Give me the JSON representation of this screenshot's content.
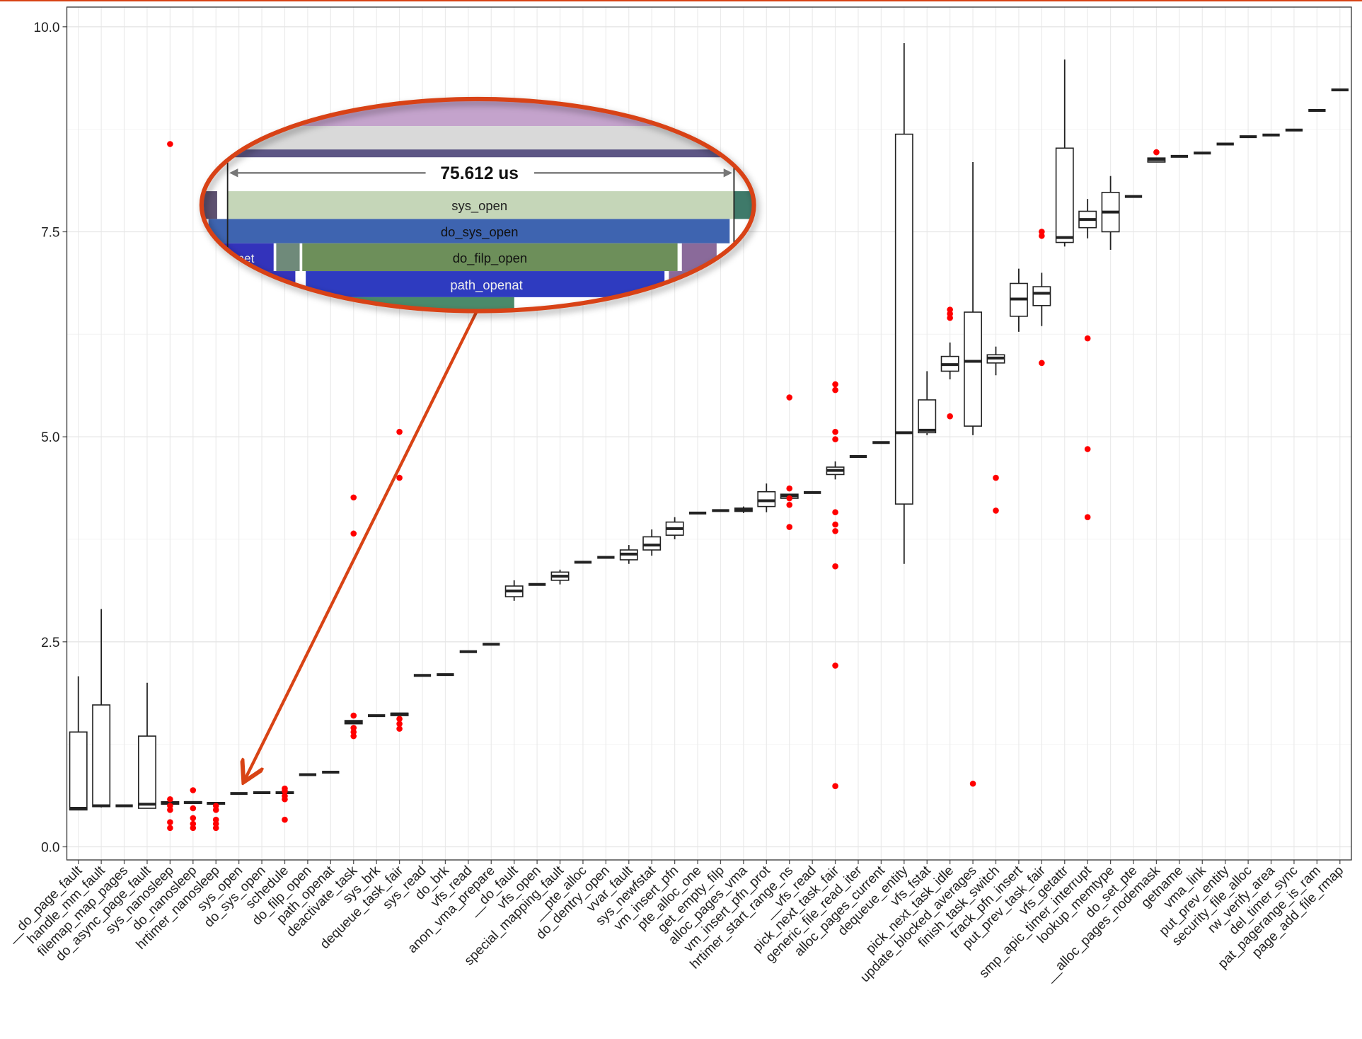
{
  "chart_data": {
    "type": "box",
    "categories": [
      "__do_page_fault",
      "handle_mm_fault",
      "filemap_map_pages",
      "do_async_page_fault",
      "sys_nanosleep",
      "do_nanosleep",
      "hrtimer_nanosleep",
      "sys_open",
      "do_sys_open",
      "schedule",
      "do_filp_open",
      "path_openat",
      "deactivate_task",
      "sys_brk",
      "dequeue_task_fair",
      "sys_read",
      "do_brk",
      "vfs_read",
      "anon_vma_prepare",
      "__do_fault",
      "vfs_open",
      "special_mapping_fault",
      "__pte_alloc",
      "do_dentry_open",
      "vvar_fault",
      "sys_newfstat",
      "vm_insert_pfn",
      "pte_alloc_one",
      "get_empty_filp",
      "alloc_pages_vma",
      "vm_insert_pfn_prot",
      "hrtimer_start_range_ns",
      "__vfs_read",
      "pick_next_task_fair",
      "generic_file_read_iter",
      "alloc_pages_current",
      "dequeue_entity",
      "vfs_fstat",
      "pick_next_task_idle",
      "update_blocked_averages",
      "finish_task_switch",
      "track_pfn_insert",
      "put_prev_task_fair",
      "vfs_getattr",
      "smp_apic_timer_interrupt",
      "lookup_memtype",
      "do_set_pte",
      "__alloc_pages_nodemask",
      "getname",
      "vma_link",
      "put_prev_entity",
      "security_file_alloc",
      "rw_verify_area",
      "del_timer_sync",
      "pat_pagerange_is_ram",
      "page_add_file_rmap"
    ],
    "min": [
      0.45,
      0.48,
      0.5,
      0.47,
      0.52,
      0.53,
      0.52,
      0.65,
      0.66,
      0.65,
      0.88,
      0.91,
      1.5,
      1.6,
      1.6,
      2.09,
      2.1,
      2.38,
      2.47,
      3.0,
      3.2,
      3.2,
      3.47,
      3.53,
      3.45,
      3.55,
      3.75,
      4.07,
      4.1,
      4.07,
      4.08,
      4.25,
      4.32,
      4.48,
      4.76,
      4.93,
      3.45,
      5.02,
      5.7,
      5.02,
      5.75,
      6.28,
      6.35,
      7.32,
      7.42,
      7.28,
      7.93,
      8.35,
      8.42,
      8.46,
      8.57,
      8.66,
      8.68,
      8.74,
      8.98,
      9.23
    ],
    "q1": [
      0.45,
      0.49,
      0.5,
      0.47,
      0.52,
      0.53,
      0.52,
      0.65,
      0.66,
      0.65,
      0.88,
      0.91,
      1.5,
      1.6,
      1.6,
      2.09,
      2.1,
      2.38,
      2.47,
      3.05,
      3.2,
      3.25,
      3.47,
      3.53,
      3.5,
      3.62,
      3.8,
      4.07,
      4.1,
      4.09,
      4.15,
      4.25,
      4.32,
      4.54,
      4.76,
      4.93,
      4.18,
      5.05,
      5.8,
      5.13,
      5.9,
      6.47,
      6.6,
      7.37,
      7.55,
      7.5,
      7.93,
      8.35,
      8.42,
      8.46,
      8.57,
      8.66,
      8.68,
      8.74,
      8.98,
      9.23
    ],
    "median": [
      0.47,
      0.5,
      0.5,
      0.52,
      0.53,
      0.54,
      0.53,
      0.65,
      0.66,
      0.66,
      0.88,
      0.91,
      1.52,
      1.6,
      1.62,
      2.09,
      2.1,
      2.38,
      2.47,
      3.12,
      3.2,
      3.3,
      3.47,
      3.53,
      3.57,
      3.68,
      3.88,
      4.07,
      4.1,
      4.11,
      4.22,
      4.28,
      4.32,
      4.59,
      4.76,
      4.93,
      5.05,
      5.08,
      5.88,
      5.92,
      5.96,
      6.68,
      6.75,
      7.43,
      7.65,
      7.74,
      7.93,
      8.38,
      8.42,
      8.46,
      8.57,
      8.66,
      8.68,
      8.74,
      8.98,
      9.23
    ],
    "q3": [
      1.4,
      1.73,
      0.5,
      1.35,
      0.55,
      0.55,
      0.54,
      0.65,
      0.66,
      0.67,
      0.88,
      0.91,
      1.54,
      1.6,
      1.63,
      2.09,
      2.1,
      2.38,
      2.47,
      3.18,
      3.2,
      3.35,
      3.47,
      3.53,
      3.62,
      3.78,
      3.96,
      4.07,
      4.1,
      4.13,
      4.33,
      4.3,
      4.32,
      4.63,
      4.76,
      4.93,
      8.69,
      5.45,
      5.98,
      6.52,
      6.0,
      6.87,
      6.83,
      8.52,
      7.75,
      7.98,
      7.93,
      8.4,
      8.42,
      8.46,
      8.57,
      8.66,
      8.68,
      8.74,
      8.98,
      9.23
    ],
    "max": [
      2.08,
      2.9,
      0.5,
      2.0,
      0.55,
      0.55,
      0.54,
      0.65,
      0.66,
      0.67,
      0.88,
      0.91,
      1.54,
      1.6,
      1.63,
      2.09,
      2.1,
      2.38,
      2.47,
      3.25,
      3.2,
      3.38,
      3.47,
      3.53,
      3.68,
      3.87,
      4.02,
      4.07,
      4.1,
      4.15,
      4.43,
      4.3,
      4.32,
      4.7,
      4.76,
      4.93,
      9.8,
      5.8,
      6.15,
      8.35,
      6.1,
      7.05,
      7.0,
      9.6,
      7.9,
      8.18,
      7.93,
      8.4,
      8.42,
      8.46,
      8.57,
      8.66,
      8.68,
      8.74,
      8.98,
      9.23
    ],
    "outliers": [
      [],
      [],
      [],
      [],
      [
        8.57,
        0.58,
        0.5,
        0.45,
        0.3,
        0.23
      ],
      [
        0.69,
        0.47,
        0.35,
        0.28,
        0.23
      ],
      [
        0.5,
        0.45,
        0.33,
        0.28,
        0.23
      ],
      [],
      [],
      [
        0.71,
        0.68,
        0.62,
        0.58,
        0.33
      ],
      [],
      [],
      [
        4.26,
        3.82,
        1.6,
        1.45,
        1.4,
        1.35
      ],
      [],
      [
        5.06,
        4.5,
        1.56,
        1.5,
        1.44
      ],
      [],
      [],
      [],
      [],
      [],
      [],
      [],
      [],
      [],
      [],
      [],
      [],
      [],
      [],
      [],
      [],
      [
        5.48,
        4.37,
        4.25,
        4.17,
        3.9
      ],
      [],
      [
        5.64,
        5.57,
        5.06,
        4.97,
        4.08,
        3.93,
        3.85,
        3.42,
        2.21,
        0.74
      ],
      [],
      [],
      [],
      [],
      [
        6.55,
        6.5,
        6.45,
        5.25
      ],
      [
        0.77
      ],
      [
        4.5,
        4.1
      ],
      [],
      [
        7.5,
        7.45,
        5.9
      ],
      [],
      [
        6.2,
        4.85,
        4.02
      ],
      [],
      [],
      [
        8.47
      ],
      [],
      [],
      [],
      [],
      [],
      [],
      [],
      []
    ],
    "box_color": "#222222",
    "outlier_color": "#ff0000",
    "ylim": [
      -0.16,
      10.24
    ],
    "yticks": [
      {
        "value": 0,
        "label": "0.0"
      },
      2.5,
      {
        "value": 5,
        "label": "5.0"
      },
      7.5,
      {
        "value": 10,
        "label": "10.0"
      }
    ],
    "grid": true,
    "inset": {
      "measure": "75.612 us",
      "frames": [
        "sys_open",
        "do_sys_open",
        "do_filp_open",
        "path_openat"
      ],
      "partial": "net"
    }
  }
}
